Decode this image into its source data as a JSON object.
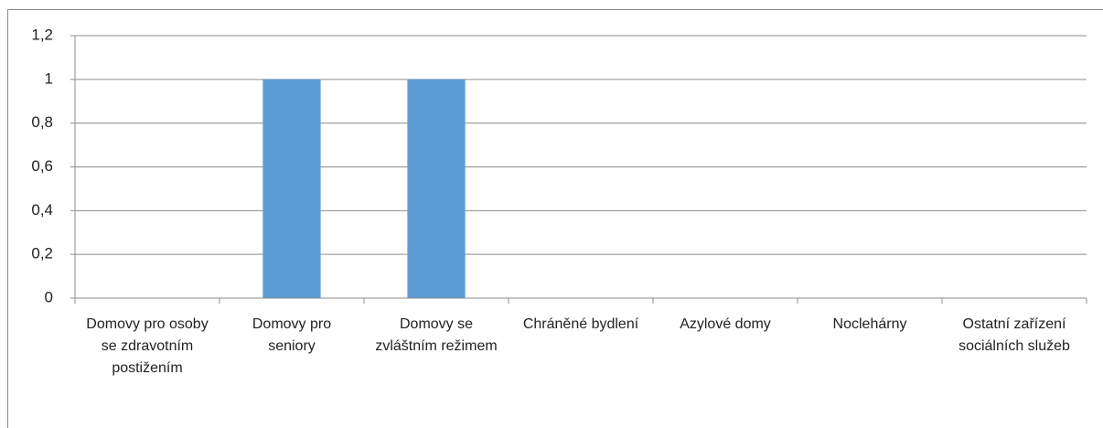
{
  "chart_data": {
    "type": "bar",
    "categories": [
      "Domovy pro osoby se zdravotním postižením",
      "Domovy pro seniory",
      "Domovy se zvláštním režimem",
      "Chráněné bydlení",
      "Azylové domy",
      "Noclehárny",
      "Ostatní zařízení sociálních služeb"
    ],
    "values": [
      0,
      1,
      1,
      0,
      0,
      0,
      0
    ],
    "color": "#5b9bd5",
    "ylim": [
      0,
      1.2
    ],
    "yticks": [
      0,
      {
        "value": 0.2,
        "label": "0,2"
      },
      {
        "value": 0.4,
        "label": "0,4"
      },
      {
        "value": 0.6,
        "label": "0,6"
      },
      {
        "value": 0.8,
        "label": "0,8"
      },
      1,
      {
        "value": 1.2,
        "label": "1,2"
      }
    ],
    "grid": true
  }
}
